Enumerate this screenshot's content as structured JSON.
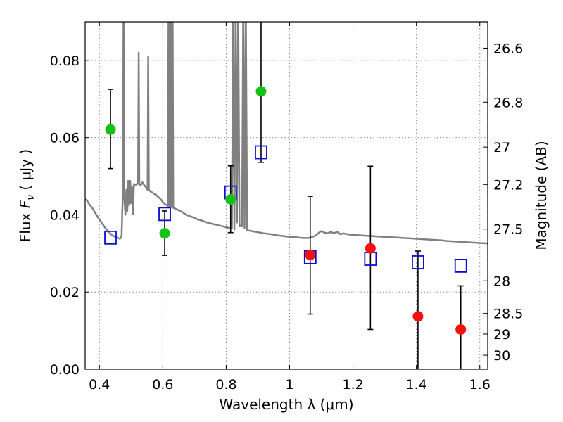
{
  "chart_data": {
    "type": "scatter",
    "xlabel": "Wavelength  λ (μm)",
    "ylabel_prefix": "Flux  ",
    "ylabel_symbol": "F",
    "ylabel_sub": "ν",
    "ylabel_suffix": "  ( μJy )",
    "y2label": "Magnitude (AB)",
    "xlim": [
      0.355,
      1.625
    ],
    "ylim": [
      0.0,
      0.09
    ],
    "grid": true,
    "x_ticks": [
      {
        "value": 0.4,
        "label": "0.4"
      },
      {
        "value": 0.6,
        "label": "0.6"
      },
      {
        "value": 0.8,
        "label": "0.8"
      },
      {
        "value": 1.0,
        "label": "1"
      },
      {
        "value": 1.2,
        "label": "1.2"
      },
      {
        "value": 1.4,
        "label": "1.4"
      },
      {
        "value": 1.6,
        "label": "1.6"
      }
    ],
    "y_ticks": [
      {
        "value": 0.0,
        "label": "0.00"
      },
      {
        "value": 0.02,
        "label": "0.02"
      },
      {
        "value": 0.04,
        "label": "0.04"
      },
      {
        "value": 0.06,
        "label": "0.06"
      },
      {
        "value": 0.08,
        "label": "0.08"
      }
    ],
    "y2_ticks": [
      {
        "value": 26.6,
        "label": "26.6"
      },
      {
        "value": 26.8,
        "label": "26.8"
      },
      {
        "value": 27.0,
        "label": "27"
      },
      {
        "value": 27.2,
        "label": "27.2"
      },
      {
        "value": 27.5,
        "label": "27.5"
      },
      {
        "value": 28.0,
        "label": "28"
      },
      {
        "value": 28.5,
        "label": "28.5"
      },
      {
        "value": 29.0,
        "label": "29"
      },
      {
        "value": 30.0,
        "label": "30"
      }
    ],
    "observed_green": [
      {
        "x": 0.435,
        "y": 0.0621,
        "err_low": 0.052,
        "err_high": 0.0725
      },
      {
        "x": 0.606,
        "y": 0.0352,
        "err_low": 0.0295,
        "err_high": 0.041
      },
      {
        "x": 0.814,
        "y": 0.044,
        "err_low": 0.0354,
        "err_high": 0.0527
      },
      {
        "x": 0.91,
        "y": 0.072,
        "err_low": 0.0536,
        "err_high": 0.0905
      }
    ],
    "observed_red": [
      {
        "x": 1.065,
        "y": 0.0296,
        "err_low": 0.0143,
        "err_high": 0.0448
      },
      {
        "x": 1.255,
        "y": 0.0313,
        "err_low": 0.0103,
        "err_high": 0.0526
      },
      {
        "x": 1.405,
        "y": 0.0137,
        "err_low": 0.0,
        "err_high": 0.0306
      },
      {
        "x": 1.54,
        "y": 0.0103,
        "err_low": 0.0,
        "err_high": 0.0216
      }
    ],
    "model_squares": [
      {
        "x": 0.435,
        "y": 0.0341
      },
      {
        "x": 0.606,
        "y": 0.0402
      },
      {
        "x": 0.814,
        "y": 0.0458
      },
      {
        "x": 0.91,
        "y": 0.0562
      },
      {
        "x": 1.065,
        "y": 0.029
      },
      {
        "x": 1.255,
        "y": 0.0286
      },
      {
        "x": 1.405,
        "y": 0.0277
      },
      {
        "x": 1.54,
        "y": 0.0268
      }
    ],
    "spectrum": [
      [
        0.355,
        0.044
      ],
      [
        0.36,
        0.0438
      ],
      [
        0.37,
        0.0425
      ],
      [
        0.38,
        0.0415
      ],
      [
        0.39,
        0.04
      ],
      [
        0.4,
        0.0388
      ],
      [
        0.41,
        0.0376
      ],
      [
        0.42,
        0.0364
      ],
      [
        0.43,
        0.0355
      ],
      [
        0.44,
        0.0347
      ],
      [
        0.45,
        0.0343
      ],
      [
        0.458,
        0.034
      ],
      [
        0.465,
        0.0338
      ],
      [
        0.47,
        0.0345
      ],
      [
        0.473,
        0.043
      ],
      [
        0.475,
        0.052
      ],
      [
        0.476,
        0.095
      ],
      [
        0.477,
        0.095
      ],
      [
        0.478,
        0.045
      ],
      [
        0.482,
        0.04
      ],
      [
        0.485,
        0.0465
      ],
      [
        0.488,
        0.041
      ],
      [
        0.491,
        0.0488
      ],
      [
        0.494,
        0.0425
      ],
      [
        0.497,
        0.0488
      ],
      [
        0.5,
        0.043
      ],
      [
        0.503,
        0.0472
      ],
      [
        0.506,
        0.0402
      ],
      [
        0.509,
        0.048
      ],
      [
        0.512,
        0.0478
      ],
      [
        0.516,
        0.0478
      ],
      [
        0.52,
        0.0482
      ],
      [
        0.522,
        0.048
      ],
      [
        0.524,
        0.082
      ],
      [
        0.526,
        0.048
      ],
      [
        0.53,
        0.0476
      ],
      [
        0.536,
        0.0484
      ],
      [
        0.542,
        0.0476
      ],
      [
        0.548,
        0.047
      ],
      [
        0.552,
        0.0465
      ],
      [
        0.554,
        0.081
      ],
      [
        0.556,
        0.0465
      ],
      [
        0.562,
        0.046
      ],
      [
        0.57,
        0.0456
      ],
      [
        0.578,
        0.0452
      ],
      [
        0.586,
        0.0446
      ],
      [
        0.594,
        0.044
      ],
      [
        0.6,
        0.0433
      ],
      [
        0.606,
        0.0428
      ],
      [
        0.612,
        0.0425
      ],
      [
        0.616,
        0.0422
      ],
      [
        0.618,
        0.095
      ],
      [
        0.62,
        0.0422
      ],
      [
        0.623,
        0.095
      ],
      [
        0.625,
        0.042
      ],
      [
        0.627,
        0.095
      ],
      [
        0.629,
        0.042
      ],
      [
        0.631,
        0.095
      ],
      [
        0.633,
        0.0418
      ],
      [
        0.64,
        0.0416
      ],
      [
        0.65,
        0.0412
      ],
      [
        0.66,
        0.0408
      ],
      [
        0.67,
        0.0402
      ],
      [
        0.68,
        0.0398
      ],
      [
        0.69,
        0.0395
      ],
      [
        0.7,
        0.0392
      ],
      [
        0.71,
        0.0388
      ],
      [
        0.72,
        0.0386
      ],
      [
        0.73,
        0.0383
      ],
      [
        0.74,
        0.038
      ],
      [
        0.75,
        0.0378
      ],
      [
        0.76,
        0.0376
      ],
      [
        0.77,
        0.0374
      ],
      [
        0.78,
        0.0372
      ],
      [
        0.79,
        0.037
      ],
      [
        0.8,
        0.0368
      ],
      [
        0.81,
        0.0366
      ],
      [
        0.818,
        0.0365
      ],
      [
        0.822,
        0.095
      ],
      [
        0.826,
        0.0362
      ],
      [
        0.83,
        0.095
      ],
      [
        0.834,
        0.038
      ],
      [
        0.838,
        0.095
      ],
      [
        0.842,
        0.037
      ],
      [
        0.846,
        0.0372
      ],
      [
        0.85,
        0.037
      ],
      [
        0.854,
        0.095
      ],
      [
        0.858,
        0.0366
      ],
      [
        0.862,
        0.095
      ],
      [
        0.866,
        0.036
      ],
      [
        0.88,
        0.0358
      ],
      [
        0.9,
        0.0355
      ],
      [
        0.92,
        0.0352
      ],
      [
        0.94,
        0.035
      ],
      [
        0.96,
        0.0347
      ],
      [
        0.98,
        0.0345
      ],
      [
        1.0,
        0.0343
      ],
      [
        1.02,
        0.0342
      ],
      [
        1.04,
        0.034
      ],
      [
        1.06,
        0.034
      ],
      [
        1.08,
        0.0345
      ],
      [
        1.09,
        0.0352
      ],
      [
        1.1,
        0.0358
      ],
      [
        1.11,
        0.0354
      ],
      [
        1.12,
        0.0352
      ],
      [
        1.13,
        0.0356
      ],
      [
        1.14,
        0.0352
      ],
      [
        1.15,
        0.0356
      ],
      [
        1.16,
        0.035
      ],
      [
        1.17,
        0.0352
      ],
      [
        1.18,
        0.035
      ],
      [
        1.2,
        0.0348
      ],
      [
        1.22,
        0.0347
      ],
      [
        1.24,
        0.0346
      ],
      [
        1.26,
        0.0345
      ],
      [
        1.28,
        0.0344
      ],
      [
        1.3,
        0.0343
      ],
      [
        1.32,
        0.0342
      ],
      [
        1.34,
        0.0341
      ],
      [
        1.36,
        0.034
      ],
      [
        1.38,
        0.0339
      ],
      [
        1.4,
        0.0338
      ],
      [
        1.42,
        0.0337
      ],
      [
        1.44,
        0.0336
      ],
      [
        1.46,
        0.0335
      ],
      [
        1.48,
        0.0334
      ],
      [
        1.5,
        0.0332
      ],
      [
        1.52,
        0.0331
      ],
      [
        1.54,
        0.033
      ],
      [
        1.56,
        0.0329
      ],
      [
        1.58,
        0.0328
      ],
      [
        1.6,
        0.0327
      ],
      [
        1.625,
        0.0326
      ]
    ],
    "colors": {
      "spectrum": "#808080",
      "green": "#14c114",
      "red": "#f50f0f",
      "square": "#0a0ad8",
      "errorbar": "#000000",
      "grid": "#8c8c8c"
    }
  }
}
